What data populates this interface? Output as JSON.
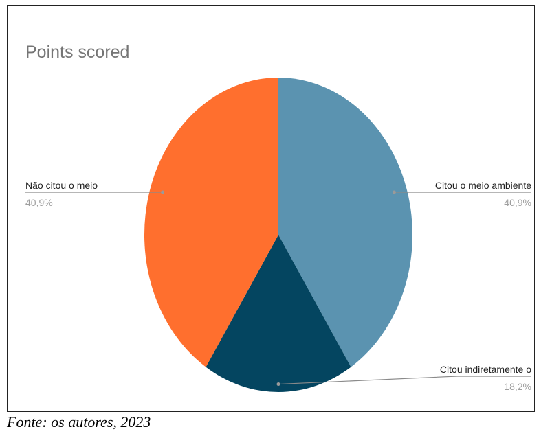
{
  "chart_data": {
    "type": "pie",
    "title": "Points scored",
    "slices": [
      {
        "label": "Citou o meio ambiente",
        "value": 40.9,
        "value_label": "40,9%",
        "color": "#5B93B0"
      },
      {
        "label": "Citou indiretamente  o",
        "value": 18.2,
        "value_label": "18,2%",
        "color": "#044560"
      },
      {
        "label": "Não citou o meio",
        "value": 40.9,
        "value_label": "40,9%",
        "color": "#FF6F2E"
      }
    ],
    "start_angle_deg": 0,
    "direction": "clockwise",
    "legend": "none",
    "label_style": "callout",
    "title_color": "#757575",
    "label_color": "#222222",
    "percent_color": "#9E9E9E"
  },
  "caption": "Fonte: os autores, 2023"
}
